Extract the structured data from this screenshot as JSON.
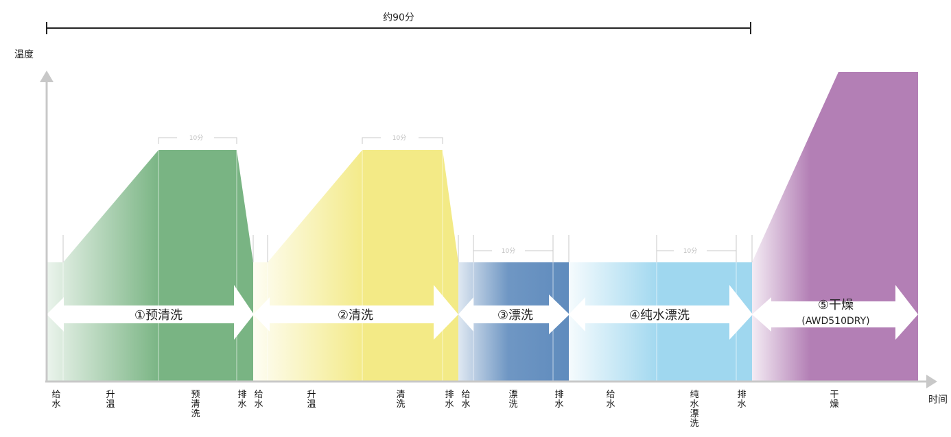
{
  "duration_label": "约90分",
  "y_axis_label": "温度",
  "x_axis_label": "时间",
  "hold_label": "10分",
  "phases": [
    {
      "id": "prewash",
      "label": "①预清洗"
    },
    {
      "id": "wash",
      "label": "②清洗"
    },
    {
      "id": "rinse",
      "label": "③漂洗"
    },
    {
      "id": "pure_rinse",
      "label": "④纯水漂洗"
    },
    {
      "id": "dry",
      "label": "⑤干燥",
      "sublabel": "(AWD510DRY)"
    }
  ],
  "steps": [
    {
      "label": "给水"
    },
    {
      "label": "升温"
    },
    {
      "label": "预清洗"
    },
    {
      "label": "排水"
    },
    {
      "label": "给水"
    },
    {
      "label": "升温"
    },
    {
      "label": "清洗"
    },
    {
      "label": "排水"
    },
    {
      "label": "给水"
    },
    {
      "label": "漂洗"
    },
    {
      "label": "排水"
    },
    {
      "label": "给水"
    },
    {
      "label": "纯水漂洗"
    },
    {
      "label": "排水"
    },
    {
      "label": "干燥"
    }
  ],
  "colors": {
    "prewash": "#79b483",
    "wash": "#f3ea86",
    "rinse": "#5f8bbd",
    "pure_rinse": "#9fd7ef",
    "dry": "#b37fb5",
    "axis": "#c8c8c8",
    "line": "#222222"
  }
}
